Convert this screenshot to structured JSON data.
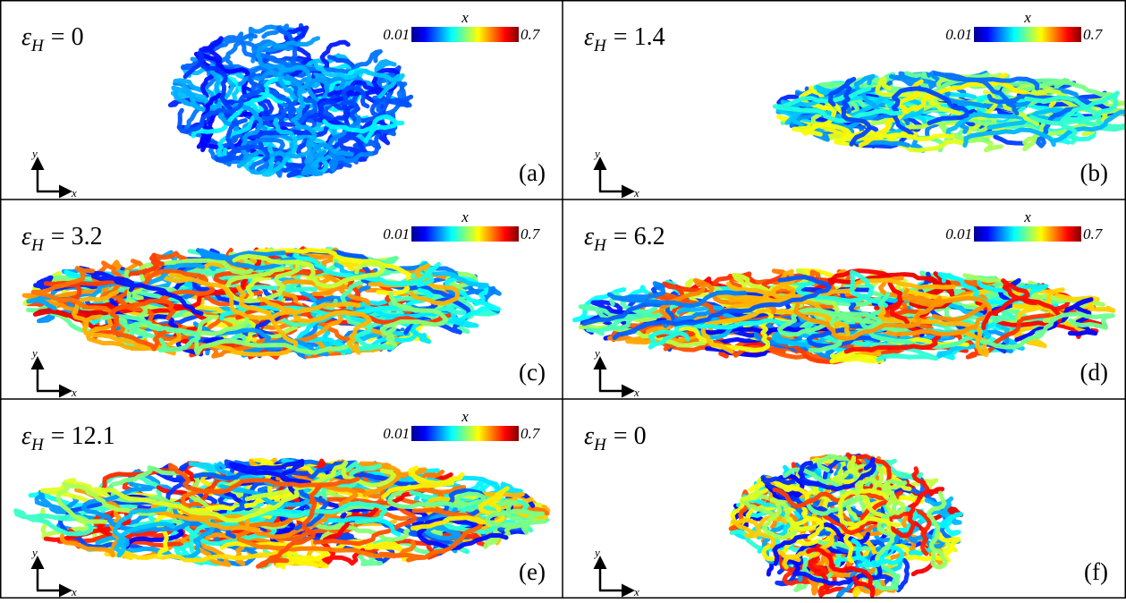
{
  "panels": [
    {
      "tag": "(a)",
      "label": {
        "symbol": "ε",
        "subscript": "H",
        "value": "= 0"
      },
      "colorbar": {
        "title": "x",
        "min": "0.01",
        "max": "0.7"
      },
      "axes": {
        "y": "y",
        "x": "x"
      }
    },
    {
      "tag": "(b)",
      "label": {
        "symbol": "ε",
        "subscript": "H",
        "value": "= 1.4"
      },
      "colorbar": {
        "title": "x",
        "min": "0.01",
        "max": "0.7"
      },
      "axes": {
        "y": "y",
        "x": "x"
      }
    },
    {
      "tag": "(c)",
      "label": {
        "symbol": "ε",
        "subscript": "H",
        "value": "= 3.2"
      },
      "colorbar": {
        "title": "x",
        "min": "0.01",
        "max": "0.7"
      },
      "axes": {
        "y": "y",
        "x": "x"
      }
    },
    {
      "tag": "(d)",
      "label": {
        "symbol": "ε",
        "subscript": "H",
        "value": "= 6.2"
      },
      "colorbar": {
        "title": "x",
        "min": "0.01",
        "max": "0.7"
      },
      "axes": {
        "y": "y",
        "x": "x"
      }
    },
    {
      "tag": "(e)",
      "label": {
        "symbol": "ε",
        "subscript": "H",
        "value": "= 12.1"
      },
      "colorbar": {
        "title": "x",
        "min": "0.01",
        "max": "0.7"
      },
      "axes": {
        "y": "y",
        "x": "x"
      }
    },
    {
      "tag": "(f)",
      "label": {
        "symbol": "ε",
        "subscript": "H",
        "value": "= 0"
      },
      "axes": {
        "y": "y",
        "x": "x"
      }
    }
  ]
}
